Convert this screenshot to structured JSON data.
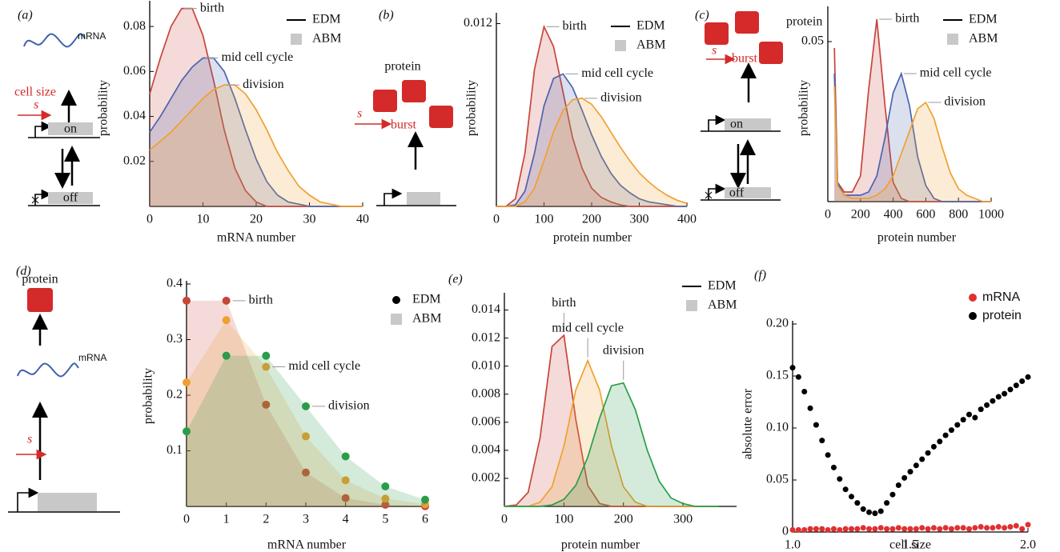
{
  "chart_data": [
    {
      "type": "line",
      "panel_label": "(a)",
      "xlabel": "mRNA number",
      "ylabel": "probability",
      "schematic_labels": [
        "mRNA",
        "cell size",
        "s",
        "on",
        "off"
      ],
      "legend": [
        "EDM",
        "ABM"
      ],
      "legend_colors": [
        "#000000",
        "#c8c8c8"
      ],
      "xlim": [
        0,
        40
      ],
      "ylim": [
        0,
        0.09
      ],
      "xticks": [
        0,
        10,
        20,
        30,
        40
      ],
      "yticks": [
        0.02,
        0.04,
        0.06,
        0.08
      ],
      "x": [
        0,
        2,
        4,
        6,
        8,
        10,
        12,
        14,
        16,
        18,
        20,
        22,
        24,
        26,
        28,
        30,
        32,
        34,
        36,
        38,
        40
      ],
      "series": [
        {
          "name": "birth",
          "color": "#c8453a",
          "values": [
            0.05,
            0.066,
            0.08,
            0.088,
            0.088,
            0.076,
            0.056,
            0.034,
            0.017,
            0.007,
            0.002,
            0,
            0,
            0,
            0,
            0,
            0,
            0,
            0,
            0,
            0
          ]
        },
        {
          "name": "mid cell cycle",
          "color": "#4a64b0",
          "values": [
            0.033,
            0.04,
            0.048,
            0.056,
            0.062,
            0.066,
            0.066,
            0.06,
            0.048,
            0.034,
            0.021,
            0.011,
            0.005,
            0.002,
            0.001,
            0,
            0,
            0,
            0,
            0,
            0
          ]
        },
        {
          "name": "division",
          "color": "#f0a030",
          "values": [
            0.025,
            0.029,
            0.033,
            0.038,
            0.043,
            0.048,
            0.052,
            0.054,
            0.054,
            0.05,
            0.043,
            0.034,
            0.024,
            0.016,
            0.009,
            0.005,
            0.002,
            0.001,
            0,
            0,
            0
          ]
        }
      ]
    },
    {
      "type": "line",
      "panel_label": "(b)",
      "xlabel": "protein number",
      "ylabel": "probability",
      "schematic_labels": [
        "protein",
        "s",
        "burst"
      ],
      "legend": [
        "EDM",
        "ABM"
      ],
      "legend_colors": [
        "#000000",
        "#c8c8c8"
      ],
      "xlim": [
        0,
        400
      ],
      "ylim": [
        0,
        0.0125
      ],
      "xticks": [
        0,
        100,
        200,
        300,
        400
      ],
      "yticks": [
        0.012
      ],
      "x": [
        0,
        20,
        40,
        60,
        80,
        100,
        120,
        140,
        160,
        180,
        200,
        220,
        240,
        260,
        280,
        300,
        320,
        340,
        360,
        380,
        400
      ],
      "series": [
        {
          "name": "birth",
          "color": "#c8453a",
          "values": [
            0,
            0,
            0.0005,
            0.0035,
            0.009,
            0.0118,
            0.0105,
            0.0075,
            0.0045,
            0.0025,
            0.0012,
            0.0006,
            0.0003,
            0.0001,
            0,
            0,
            0,
            0,
            0,
            0,
            0
          ]
        },
        {
          "name": "mid cell cycle",
          "color": "#4a64b0",
          "values": [
            0,
            0,
            0.0001,
            0.001,
            0.0035,
            0.0066,
            0.0084,
            0.0087,
            0.0078,
            0.0063,
            0.0047,
            0.0033,
            0.0022,
            0.0014,
            0.0009,
            0.0005,
            0.0003,
            0.0002,
            0.0001,
            0,
            0
          ]
        },
        {
          "name": "division",
          "color": "#f0a030",
          "values": [
            0,
            0,
            0,
            0.0003,
            0.0012,
            0.003,
            0.0049,
            0.0063,
            0.007,
            0.0071,
            0.0067,
            0.0059,
            0.0049,
            0.0039,
            0.003,
            0.0022,
            0.0016,
            0.0011,
            0.0007,
            0.0004,
            0.0002
          ]
        }
      ]
    },
    {
      "type": "line",
      "panel_label": "(c)",
      "xlabel": "protein number",
      "ylabel": "probability",
      "schematic_labels": [
        "protein",
        "s",
        "burst",
        "on",
        "off"
      ],
      "legend": [
        "EDM",
        "ABM"
      ],
      "legend_colors": [
        "#000000",
        "#c8c8c8"
      ],
      "xlim": [
        0,
        1000
      ],
      "ylim": [
        0,
        0.06
      ],
      "xticks": [
        0,
        200,
        400,
        600,
        800,
        1000
      ],
      "yticks": [
        0.05
      ],
      "x": [
        40,
        60,
        100,
        150,
        200,
        250,
        300,
        350,
        400,
        450,
        500,
        550,
        600,
        650,
        700,
        750,
        800,
        850,
        900,
        950,
        1000
      ],
      "series": [
        {
          "name": "birth",
          "color": "#c8453a",
          "values": [
            0.048,
            0.006,
            0.003,
            0.003,
            0.008,
            0.035,
            0.057,
            0.03,
            0.006,
            0.001,
            0,
            0,
            0,
            0,
            0,
            0,
            0,
            0,
            0,
            0,
            0
          ]
        },
        {
          "name": "mid cell cycle",
          "color": "#4a64b0",
          "values": [
            0.04,
            0.006,
            0.002,
            0.002,
            0.002,
            0.003,
            0.008,
            0.02,
            0.034,
            0.04,
            0.03,
            0.014,
            0.005,
            0.001,
            0,
            0,
            0,
            0,
            0,
            0,
            0
          ]
        },
        {
          "name": "division",
          "color": "#f0a030",
          "values": [
            0.036,
            0.005,
            0.002,
            0.001,
            0.001,
            0.001,
            0.002,
            0.004,
            0.008,
            0.015,
            0.022,
            0.029,
            0.031,
            0.026,
            0.017,
            0.009,
            0.004,
            0.002,
            0.001,
            0,
            0
          ]
        }
      ]
    },
    {
      "type": "scatter",
      "area": true,
      "panel_label": "(d)",
      "xlabel": "mRNA number",
      "ylabel": "probability",
      "schematic_labels": [
        "protein",
        "mRNA",
        "s"
      ],
      "legend": [
        "EDM",
        "ABM"
      ],
      "legend_colors": [
        "#000000",
        "#c8c8c8"
      ],
      "xlim": [
        0,
        6
      ],
      "ylim": [
        0,
        0.4
      ],
      "xticks": [
        0,
        1,
        2,
        3,
        4,
        5,
        6
      ],
      "yticks": [
        0.1,
        0.2,
        0.3,
        0.4
      ],
      "x": [
        0,
        1,
        2,
        3,
        4,
        5,
        6
      ],
      "series": [
        {
          "name": "birth",
          "color": "#c8453a",
          "values": [
            0.37,
            0.37,
            0.183,
            0.061,
            0.015,
            0.003,
            0.0005
          ]
        },
        {
          "name": "mid cell cycle",
          "color": "#f0a030",
          "values": [
            0.223,
            0.335,
            0.251,
            0.126,
            0.047,
            0.014,
            0.004
          ]
        },
        {
          "name": "division",
          "color": "#2a9d4a",
          "values": [
            0.135,
            0.271,
            0.271,
            0.18,
            0.09,
            0.036,
            0.012
          ]
        }
      ]
    },
    {
      "type": "line",
      "panel_label": "(e)",
      "xlabel": "protein number",
      "legend": [
        "EDM",
        "ABM"
      ],
      "legend_colors": [
        "#000000",
        "#c8c8c8"
      ],
      "xlim": [
        0,
        390
      ],
      "ylim": [
        0,
        0.015
      ],
      "xticks": [
        0,
        100,
        200,
        300
      ],
      "yticks": [
        0.002,
        0.004,
        0.006,
        0.008,
        {
          "value": 0.01,
          "label": "0.010"
        },
        0.012,
        0.014
      ],
      "x": [
        0,
        20,
        40,
        60,
        80,
        100,
        120,
        140,
        160,
        180,
        200,
        220,
        240,
        260,
        280,
        300,
        320,
        340,
        360
      ],
      "series": [
        {
          "name": "birth",
          "color": "#c8453a",
          "values": [
            0,
            0.0001,
            0.001,
            0.0049,
            0.0114,
            0.0122,
            0.0062,
            0.0015,
            0.0002,
            0,
            0,
            0,
            0,
            0,
            0,
            0,
            0,
            0,
            0
          ]
        },
        {
          "name": "mid cell cycle",
          "color": "#f0a030",
          "values": [
            0,
            0,
            0,
            0.0003,
            0.0014,
            0.0043,
            0.0083,
            0.0104,
            0.0083,
            0.0043,
            0.0014,
            0.0003,
            0,
            0,
            0,
            0,
            0,
            0,
            0
          ]
        },
        {
          "name": "division",
          "color": "#2a9d4a",
          "values": [
            0,
            0,
            0,
            0,
            0.0001,
            0.0005,
            0.0015,
            0.0035,
            0.0063,
            0.0086,
            0.0088,
            0.0069,
            0.004,
            0.0018,
            0.0006,
            0.0002,
            0,
            0,
            0
          ]
        }
      ]
    },
    {
      "type": "scatter",
      "panel_label": "(f)",
      "xlabel": "cell size",
      "ylabel": "absolute error",
      "xlim": [
        1,
        2
      ],
      "ylim": [
        0,
        0.2
      ],
      "xticks": [
        {
          "value": 1,
          "label": "1.0"
        },
        1.5,
        {
          "value": 2,
          "label": "2.0"
        }
      ],
      "yticks": [
        0,
        0.05,
        {
          "value": 0.1,
          "label": "0.10"
        },
        0.15,
        {
          "value": 0.2,
          "label": "0.20"
        }
      ],
      "x": [
        1,
        1.025,
        1.05,
        1.075,
        1.1,
        1.125,
        1.15,
        1.175,
        1.2,
        1.225,
        1.25,
        1.275,
        1.3,
        1.325,
        1.35,
        1.375,
        1.4,
        1.425,
        1.45,
        1.475,
        1.5,
        1.525,
        1.55,
        1.575,
        1.6,
        1.625,
        1.65,
        1.675,
        1.7,
        1.725,
        1.75,
        1.775,
        1.8,
        1.825,
        1.85,
        1.875,
        1.9,
        1.925,
        1.95,
        1.975,
        2
      ],
      "series": [
        {
          "name": "mRNA",
          "color": "#e03030",
          "values": [
            0.002,
            0.002,
            0.002,
            0.003,
            0.003,
            0.003,
            0.002,
            0.003,
            0.002,
            0.003,
            0.003,
            0.003,
            0.004,
            0.003,
            0.003,
            0.004,
            0.003,
            0.003,
            0.004,
            0.003,
            0.003,
            0.003,
            0.004,
            0.003,
            0.004,
            0.003,
            0.004,
            0.003,
            0.004,
            0.004,
            0.003,
            0.004,
            0.005,
            0.004,
            0.004,
            0.005,
            0.004,
            0.005,
            0.006,
            0.003,
            0.007
          ]
        },
        {
          "name": "protein",
          "color": "#000000",
          "values": [
            0.158,
            0.149,
            0.135,
            0.119,
            0.103,
            0.088,
            0.074,
            0.062,
            0.051,
            0.041,
            0.034,
            0.028,
            0.022,
            0.019,
            0.018,
            0.02,
            0.028,
            0.036,
            0.045,
            0.052,
            0.058,
            0.064,
            0.07,
            0.076,
            0.082,
            0.087,
            0.093,
            0.098,
            0.103,
            0.108,
            0.113,
            0.11,
            0.118,
            0.122,
            0.126,
            0.13,
            0.133,
            0.137,
            0.141,
            0.145,
            0.149
          ]
        }
      ]
    }
  ]
}
